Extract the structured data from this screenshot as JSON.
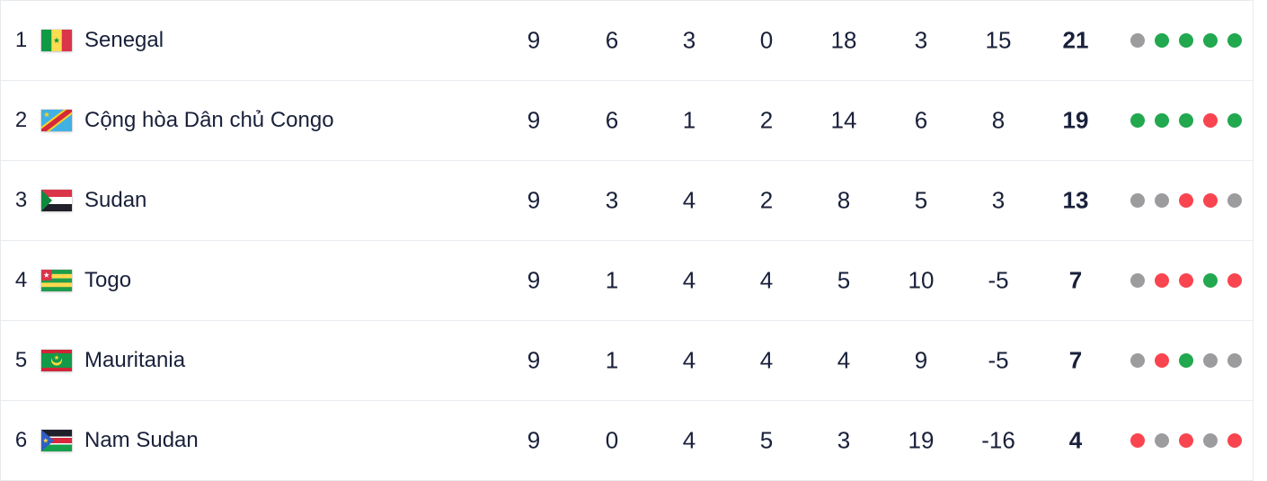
{
  "table": {
    "rows": [
      {
        "rank": "1",
        "team": "Senegal",
        "flag": "senegal",
        "played": "9",
        "wins": "6",
        "draws": "3",
        "losses": "0",
        "goals_for": "18",
        "goals_against": "3",
        "goal_diff": "15",
        "points": "21",
        "form": [
          "draw",
          "win",
          "win",
          "win",
          "win"
        ]
      },
      {
        "rank": "2",
        "team": "Cộng hòa Dân chủ Congo",
        "flag": "dr-congo",
        "played": "9",
        "wins": "6",
        "draws": "1",
        "losses": "2",
        "goals_for": "14",
        "goals_against": "6",
        "goal_diff": "8",
        "points": "19",
        "form": [
          "win",
          "win",
          "win",
          "loss",
          "win"
        ]
      },
      {
        "rank": "3",
        "team": "Sudan",
        "flag": "sudan",
        "played": "9",
        "wins": "3",
        "draws": "4",
        "losses": "2",
        "goals_for": "8",
        "goals_against": "5",
        "goal_diff": "3",
        "points": "13",
        "form": [
          "draw",
          "draw",
          "loss",
          "loss",
          "draw"
        ]
      },
      {
        "rank": "4",
        "team": "Togo",
        "flag": "togo",
        "played": "9",
        "wins": "1",
        "draws": "4",
        "losses": "4",
        "goals_for": "5",
        "goals_against": "10",
        "goal_diff": "-5",
        "points": "7",
        "form": [
          "draw",
          "loss",
          "loss",
          "win",
          "loss"
        ]
      },
      {
        "rank": "5",
        "team": "Mauritania",
        "flag": "mauritania",
        "played": "9",
        "wins": "1",
        "draws": "4",
        "losses": "4",
        "goals_for": "4",
        "goals_against": "9",
        "goal_diff": "-5",
        "points": "7",
        "form": [
          "draw",
          "loss",
          "win",
          "draw",
          "draw"
        ]
      },
      {
        "rank": "6",
        "team": "Nam Sudan",
        "flag": "south-sudan",
        "played": "9",
        "wins": "0",
        "draws": "4",
        "losses": "5",
        "goals_for": "3",
        "goals_against": "19",
        "goal_diff": "-16",
        "points": "4",
        "form": [
          "loss",
          "draw",
          "loss",
          "draw",
          "loss"
        ]
      }
    ],
    "form_colors": {
      "win": "#22a84f",
      "draw": "#9c9c9e",
      "loss": "#f9454f"
    }
  }
}
